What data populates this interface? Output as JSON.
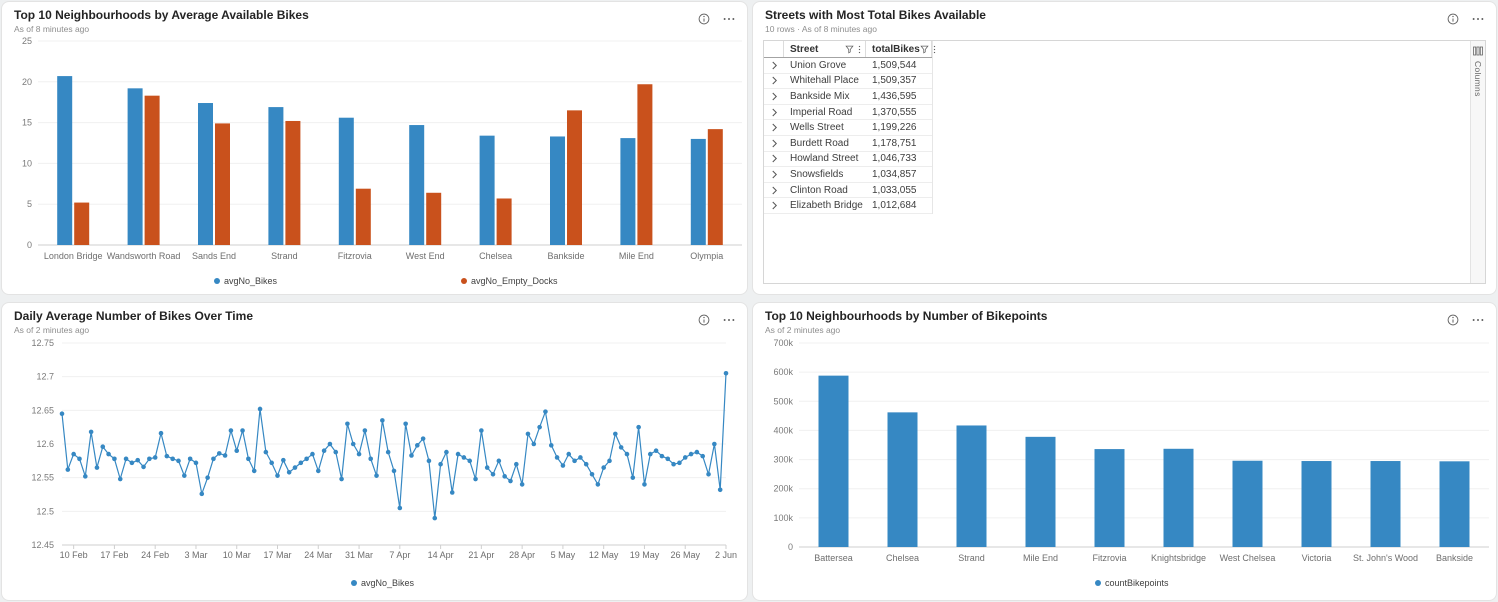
{
  "colors": {
    "series_blue": "#3688c3",
    "series_orange": "#c9511c",
    "grid_line": "#f0f0f0",
    "axis_line": "#cfcfcf",
    "axis_text": "#7a7a7a",
    "category_text": "#6e6e6e",
    "legend_text": "#3f3f3f"
  },
  "panels": {
    "avg_bikes": {
      "title": "Top 10 Neighbourhoods by Average Available Bikes",
      "subtitle": "As of 8 minutes ago"
    },
    "streets": {
      "title": "Streets with Most Total Bikes Available",
      "subtitle": "10 rows · As of 8 minutes ago",
      "columns_tab_label": "Columns"
    },
    "daily_avg": {
      "title": "Daily Average Number of Bikes Over Time",
      "subtitle": "As of 2 minutes ago"
    },
    "bikepoints": {
      "title": "Top 10 Neighbourhoods by Number of Bikepoints",
      "subtitle": "As of 2 minutes ago"
    }
  },
  "chart_data": [
    {
      "id": "avg_bikes",
      "type": "bar",
      "title": "Top 10 Neighbourhoods by Average Available Bikes",
      "categories": [
        "London Bridge",
        "Wandsworth Road",
        "Sands End",
        "Strand",
        "Fitzrovia",
        "West End",
        "Chelsea",
        "Bankside",
        "Mile End",
        "Olympia"
      ],
      "series": [
        {
          "name": "avgNo_Bikes",
          "color": "#3688c3",
          "values": [
            20.7,
            19.2,
            17.4,
            16.9,
            15.6,
            14.7,
            13.4,
            13.3,
            13.1,
            13.0
          ]
        },
        {
          "name": "avgNo_Empty_Docks",
          "color": "#c9511c",
          "values": [
            5.2,
            18.3,
            14.9,
            15.2,
            6.9,
            6.4,
            5.7,
            16.5,
            19.7,
            14.2
          ]
        }
      ],
      "ylim": [
        0,
        25
      ],
      "yticks": [
        0,
        5,
        10,
        15,
        20,
        25
      ],
      "ytick_labels": [
        "0",
        "5",
        "10",
        "15",
        "20",
        "25"
      ],
      "grid": true,
      "legend_position": "bottom"
    },
    {
      "id": "streets_table",
      "type": "table",
      "title": "Streets with Most Total Bikes Available",
      "columns": [
        "Street",
        "totalBikes"
      ],
      "rows": [
        [
          "Union Grove",
          "1,509,544"
        ],
        [
          "Whitehall Place",
          "1,509,357"
        ],
        [
          "Bankside Mix",
          "1,436,595"
        ],
        [
          "Imperial Road",
          "1,370,555"
        ],
        [
          "Wells Street",
          "1,199,226"
        ],
        [
          "Burdett Road",
          "1,178,751"
        ],
        [
          "Howland Street",
          "1,046,733"
        ],
        [
          "Snowsfields",
          "1,034,857"
        ],
        [
          "Clinton Road",
          "1,033,055"
        ],
        [
          "Elizabeth Bridge",
          "1,012,684"
        ]
      ]
    },
    {
      "id": "daily_avg",
      "type": "line",
      "title": "Daily Average Number of Bikes Over Time",
      "series_name": "avgNo_Bikes",
      "color": "#3688c3",
      "ylim": [
        12.45,
        12.75
      ],
      "yticks": [
        12.45,
        12.5,
        12.55,
        12.6,
        12.65,
        12.7,
        12.75
      ],
      "ytick_labels": [
        "12.45",
        "12.5",
        "12.55",
        "12.6",
        "12.65",
        "12.7",
        "12.75"
      ],
      "x_tick_labels": [
        "10 Feb",
        "17 Feb",
        "24 Feb",
        "3 Mar",
        "10 Mar",
        "17 Mar",
        "24 Mar",
        "31 Mar",
        "7 Apr",
        "14 Apr",
        "21 Apr",
        "28 Apr",
        "5 May",
        "12 May",
        "19 May",
        "26 May",
        "2 Jun"
      ],
      "x_tick_indices": [
        2,
        9,
        16,
        23,
        30,
        37,
        44,
        51,
        58,
        65,
        72,
        79,
        86,
        93,
        100,
        107,
        114
      ],
      "values": [
        12.645,
        12.562,
        12.585,
        12.578,
        12.552,
        12.618,
        12.565,
        12.596,
        12.585,
        12.578,
        12.548,
        12.578,
        12.572,
        12.576,
        12.566,
        12.578,
        12.58,
        12.616,
        12.582,
        12.578,
        12.575,
        12.553,
        12.578,
        12.572,
        12.526,
        12.55,
        12.578,
        12.586,
        12.583,
        12.62,
        12.59,
        12.62,
        12.578,
        12.56,
        12.652,
        12.588,
        12.572,
        12.553,
        12.576,
        12.558,
        12.565,
        12.572,
        12.578,
        12.585,
        12.56,
        12.59,
        12.6,
        12.588,
        12.548,
        12.63,
        12.6,
        12.585,
        12.62,
        12.578,
        12.553,
        12.635,
        12.588,
        12.56,
        12.505,
        12.63,
        12.583,
        12.598,
        12.608,
        12.575,
        12.49,
        12.57,
        12.588,
        12.528,
        12.585,
        12.58,
        12.575,
        12.548,
        12.62,
        12.565,
        12.555,
        12.575,
        12.552,
        12.545,
        12.57,
        12.54,
        12.615,
        12.6,
        12.625,
        12.648,
        12.598,
        12.58,
        12.568,
        12.585,
        12.575,
        12.58,
        12.57,
        12.555,
        12.54,
        12.565,
        12.575,
        12.615,
        12.595,
        12.585,
        12.55,
        12.625,
        12.54,
        12.585,
        12.59,
        12.582,
        12.578,
        12.57,
        12.572,
        12.58,
        12.585,
        12.588,
        12.582,
        12.555,
        12.6,
        12.532,
        12.705
      ],
      "grid": true,
      "legend_position": "bottom"
    },
    {
      "id": "bikepoints",
      "type": "bar",
      "title": "Top 10 Neighbourhoods by Number of Bikepoints",
      "categories": [
        "Battersea",
        "Chelsea",
        "Strand",
        "Mile End",
        "Fitzrovia",
        "Knightsbridge",
        "West Chelsea",
        "Victoria",
        "St. John's Wood",
        "Bankside"
      ],
      "series": [
        {
          "name": "countBikepoints",
          "color": "#3688c3",
          "values": [
            588000,
            462000,
            417000,
            378000,
            336000,
            337000,
            296000,
            295000,
            295000,
            294000
          ]
        }
      ],
      "ylim": [
        0,
        700000
      ],
      "yticks": [
        0,
        100000,
        200000,
        300000,
        400000,
        500000,
        600000,
        700000
      ],
      "ytick_labels": [
        "0",
        "100k",
        "200k",
        "300k",
        "400k",
        "500k",
        "600k",
        "700k"
      ],
      "grid": true,
      "legend_position": "bottom"
    }
  ]
}
